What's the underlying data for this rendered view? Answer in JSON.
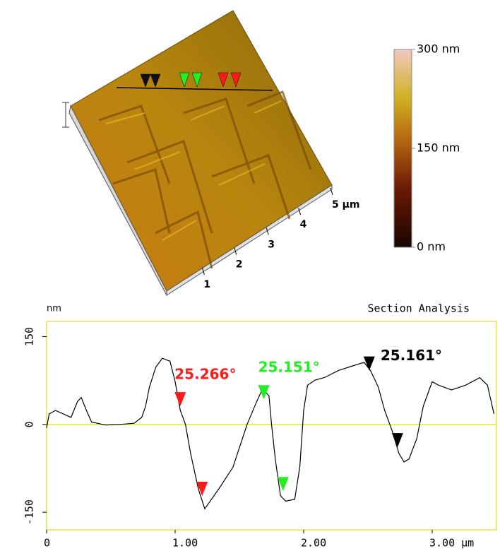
{
  "chart_data": [
    {
      "type": "surface",
      "xticks": [
        1,
        2,
        3,
        4,
        {
          "value": 5,
          "label": "5 µm"
        }
      ],
      "colorbar": {
        "lim": [
          0,
          300
        ],
        "ticks": [
          {
            "value": 300,
            "label": "300 nm"
          },
          {
            "value": 150,
            "label": "150 nm"
          },
          {
            "value": 0,
            "label": "0 nm"
          }
        ]
      }
    },
    {
      "type": "line",
      "title": "Section Analysis",
      "ylabel": "nm",
      "color": "#000000",
      "xlim": [
        0,
        3.5
      ],
      "ylim": [
        -180,
        176
      ],
      "xticks": [
        0,
        {
          "value": 1,
          "label": "1.00"
        },
        {
          "value": 2,
          "label": "2.00"
        },
        {
          "value": 3,
          "label": "3.00 µm"
        }
      ],
      "yticks": [
        150,
        0,
        -150
      ],
      "x": [
        0,
        0.02,
        0.07,
        0.13,
        0.19,
        0.24,
        0.27,
        0.31,
        0.35,
        0.46,
        0.57,
        0.68,
        0.74,
        0.77,
        0.8,
        0.85,
        0.9,
        0.96,
        1.0,
        1.04,
        1.08,
        1.12,
        1.18,
        1.23,
        1.27,
        1.34,
        1.45,
        1.56,
        1.63,
        1.68,
        1.73,
        1.75,
        1.78,
        1.82,
        1.86,
        1.93,
        1.97,
        2.0,
        2.03,
        2.09,
        2.16,
        2.27,
        2.38,
        2.47,
        2.52,
        2.58,
        2.63,
        2.69,
        2.74,
        2.78,
        2.82,
        2.88,
        2.93,
        3.0,
        3.05,
        3.15,
        3.26,
        3.37,
        3.43,
        3.48
      ],
      "values": [
        -6,
        18,
        24,
        18,
        12,
        39,
        46,
        24,
        4,
        -1,
        0,
        2,
        12,
        31,
        64,
        98,
        113,
        108,
        73,
        24,
        0,
        -49,
        -110,
        -144,
        -132,
        -110,
        -73,
        0,
        37,
        61,
        49,
        0,
        -61,
        -122,
        -131,
        -128,
        -73,
        24,
        67,
        76,
        80,
        92,
        100,
        106,
        92,
        64,
        24,
        -12,
        -49,
        -64,
        -59,
        -24,
        31,
        73,
        67,
        59,
        67,
        80,
        67,
        18
      ],
      "annotations": [
        {
          "text": "25.266°",
          "color": "#ff1a1a",
          "x": [
            1.04,
            1.21
          ],
          "y": [
            31,
            -122
          ]
        },
        {
          "text": "25.151°",
          "color": "#22ee22",
          "x": [
            1.69,
            1.84
          ],
          "y": [
            43,
            -114
          ]
        },
        {
          "text": "25.161°",
          "color": "#000000",
          "x": [
            2.51,
            2.73
          ],
          "y": [
            92,
            -39
          ]
        }
      ]
    }
  ]
}
